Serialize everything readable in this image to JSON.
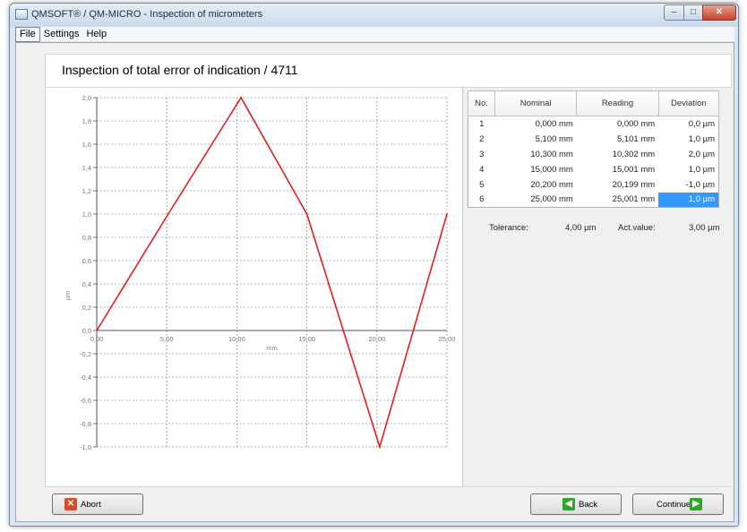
{
  "window": {
    "title": "QMSOFT® / QM-MICRO - Inspection of micrometers",
    "controls": {
      "minimize": "–",
      "maximize": "□",
      "close": "✕"
    }
  },
  "menu": [
    "File",
    "Settings",
    "Help"
  ],
  "page_title": "Inspection of total error of indication / 4711",
  "chart_data": {
    "type": "line",
    "xlabel": "mm",
    "ylabel": "µm",
    "xlim": [
      0,
      25
    ],
    "ylim": [
      -1.0,
      2.0
    ],
    "x_ticks": [
      "0,00",
      "5,00",
      "10,00",
      "15,00",
      "20,00",
      "25,00"
    ],
    "y_ticks": [
      "2,0",
      "1,8",
      "1,6",
      "1,4",
      "1,2",
      "1,0",
      "0,8",
      "0,6",
      "0,4",
      "0,2",
      "0,0",
      "-0,2",
      "-0,4",
      "-0,6",
      "-0,8",
      "-1,0"
    ],
    "grid": true,
    "series": [
      {
        "x": [
          0.0,
          5.1,
          10.3,
          15.0,
          20.2,
          25.0
        ],
        "y": [
          0.0,
          1.0,
          2.0,
          1.0,
          -1.0,
          1.0
        ],
        "color": "#e02020"
      }
    ]
  },
  "table": {
    "headers": [
      "No.",
      "Nominal",
      "Reading",
      "Deviation"
    ],
    "rows": [
      {
        "no": "1",
        "nominal": "0,000 mm",
        "reading": "0,000 mm",
        "deviation": "0,0 µm"
      },
      {
        "no": "2",
        "nominal": "5,100 mm",
        "reading": "5,101 mm",
        "deviation": "1,0 µm"
      },
      {
        "no": "3",
        "nominal": "10,300 mm",
        "reading": "10,302 mm",
        "deviation": "2,0 µm"
      },
      {
        "no": "4",
        "nominal": "15,000 mm",
        "reading": "15,001 mm",
        "deviation": "1,0 µm"
      },
      {
        "no": "5",
        "nominal": "20,200 mm",
        "reading": "20,199 mm",
        "deviation": "-1,0 µm"
      },
      {
        "no": "6",
        "nominal": "25,000 mm",
        "reading": "25,001 mm",
        "deviation": "1,0 µm"
      }
    ]
  },
  "summary": {
    "tolerance_label": "Tolerance:",
    "tolerance_value": "4,00 µm",
    "actual_label": "Act.value:",
    "actual_value": "3,00 µm"
  },
  "buttons": {
    "abort": "Abort",
    "back": "Back",
    "continue": "Continue"
  },
  "icons": {
    "abort": "close-icon",
    "back": "arrow-left-icon",
    "continue": "arrow-right-icon"
  },
  "colors": {
    "line": "#e02020",
    "selection": "#3399ff"
  }
}
